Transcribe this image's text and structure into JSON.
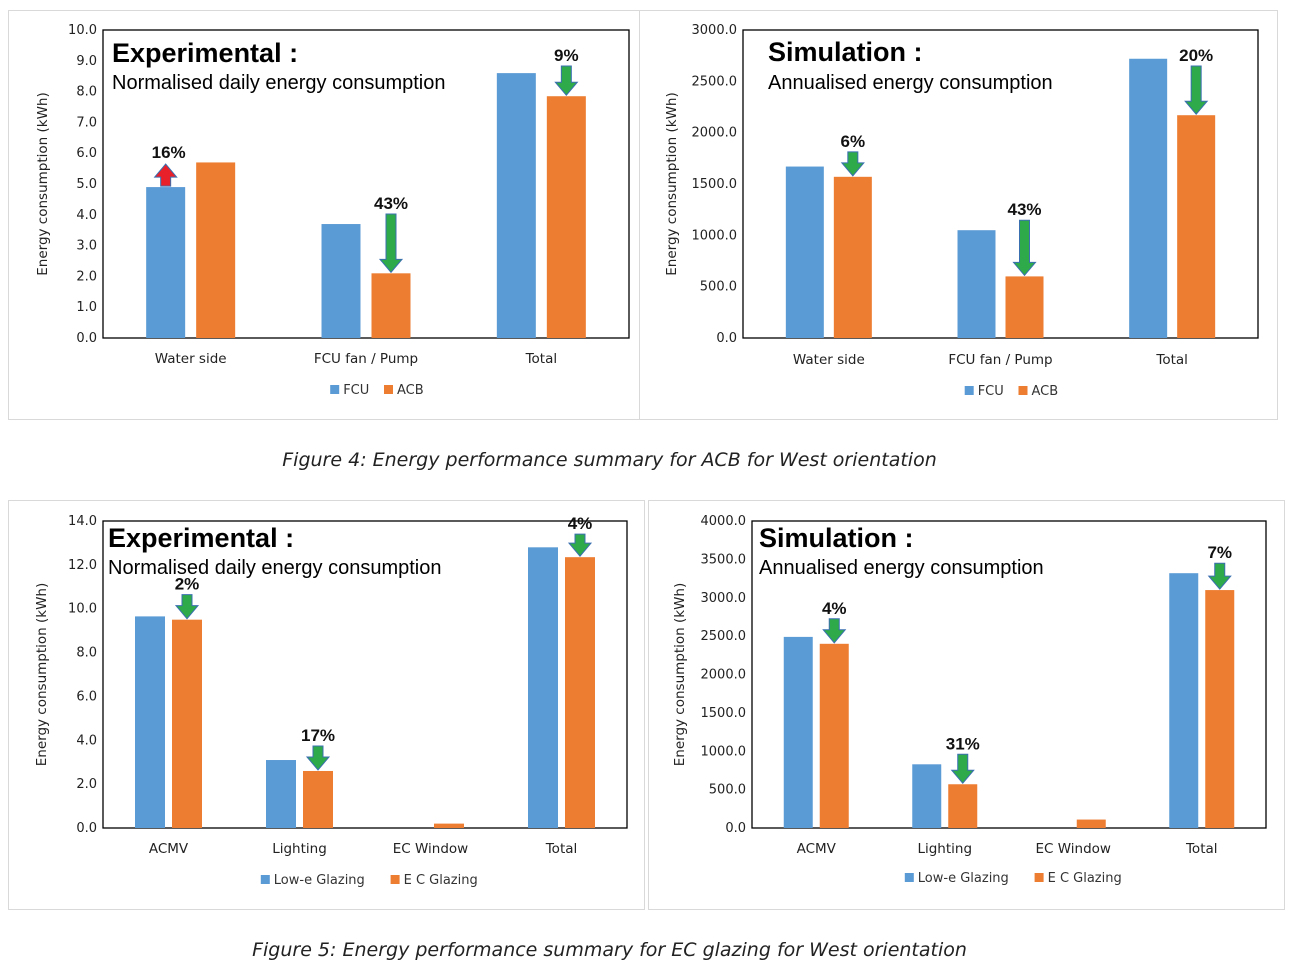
{
  "colors": {
    "series1": "#5b9bd5",
    "series2": "#ed7d31",
    "arrow_down": "#2eaa4a",
    "arrow_up": "#e8202a"
  },
  "captions": {
    "figure4": "Figure 4: Energy performance summary for ACB for West orientation",
    "figure5": "Figure 5: Energy performance summary for EC glazing for West orientation"
  },
  "chart_data": [
    {
      "type": "bar",
      "title": "Experimental :",
      "subtitle": "Normalised daily energy consumption",
      "ylabel": "Energy consumption (kWh)",
      "xlabel": "",
      "ylim": [
        0,
        10
      ],
      "yticks": [
        "0.0",
        "1.0",
        "2.0",
        "3.0",
        "4.0",
        "5.0",
        "6.0",
        "7.0",
        "8.0",
        "9.0",
        "10.0"
      ],
      "categories": [
        "Water side",
        "FCU fan / Pump",
        "Total"
      ],
      "series": [
        {
          "name": "FCU",
          "values": [
            4.9,
            3.7,
            8.6
          ]
        },
        {
          "name": "ACB",
          "values": [
            5.7,
            2.1,
            7.85
          ]
        }
      ],
      "annotations": [
        {
          "text": "16%",
          "direction": "up"
        },
        {
          "text": "43%",
          "direction": "down"
        },
        {
          "text": "9%",
          "direction": "down"
        }
      ],
      "legend": "bottom",
      "grid": false
    },
    {
      "type": "bar",
      "title": "Simulation :",
      "subtitle": "Annualised energy consumption",
      "ylabel": "Energy consumption (kWh)",
      "xlabel": "",
      "ylim": [
        0,
        3000
      ],
      "yticks": [
        "0.0",
        "500.0",
        "1000.0",
        "1500.0",
        "2000.0",
        "2500.0",
        "3000.0"
      ],
      "categories": [
        "Water side",
        "FCU fan / Pump",
        "Total"
      ],
      "series": [
        {
          "name": "FCU",
          "values": [
            1670,
            1050,
            2720
          ]
        },
        {
          "name": "ACB",
          "values": [
            1570,
            600,
            2170
          ]
        }
      ],
      "annotations": [
        {
          "text": "6%",
          "direction": "down"
        },
        {
          "text": "43%",
          "direction": "down"
        },
        {
          "text": "20%",
          "direction": "down"
        }
      ],
      "legend": "bottom",
      "grid": false
    },
    {
      "type": "bar",
      "title": "Experimental :",
      "subtitle": "Normalised daily energy consumption",
      "ylabel": "Energy consumption (kWh)",
      "xlabel": "",
      "ylim": [
        0,
        14
      ],
      "yticks": [
        "0.0",
        "2.0",
        "4.0",
        "6.0",
        "8.0",
        "10.0",
        "12.0",
        "14.0"
      ],
      "categories": [
        "ACMV",
        "Lighting",
        "EC Window",
        "Total"
      ],
      "series": [
        {
          "name": "Low-e Glazing",
          "values": [
            9.65,
            3.1,
            0,
            12.8
          ]
        },
        {
          "name": "E C Glazing",
          "values": [
            9.5,
            2.6,
            0.2,
            12.35
          ]
        }
      ],
      "annotations": [
        {
          "text": "2%",
          "direction": "down"
        },
        {
          "text": "17%",
          "direction": "down"
        },
        null,
        {
          "text": "4%",
          "direction": "down"
        }
      ],
      "legend": "bottom",
      "grid": false
    },
    {
      "type": "bar",
      "title": "Simulation :",
      "subtitle": "Annualised energy consumption",
      "ylabel": "Energy consumption (kWh)",
      "xlabel": "",
      "ylim": [
        0,
        4000
      ],
      "yticks": [
        "0.0",
        "500.0",
        "1000.0",
        "1500.0",
        "2000.0",
        "2500.0",
        "3000.0",
        "3500.0",
        "4000.0"
      ],
      "categories": [
        "ACMV",
        "Lighting",
        "EC Window",
        "Total"
      ],
      "series": [
        {
          "name": "Low-e Glazing",
          "values": [
            2490,
            830,
            0,
            3320
          ]
        },
        {
          "name": "E C Glazing",
          "values": [
            2400,
            570,
            110,
            3100
          ]
        }
      ],
      "annotations": [
        {
          "text": "4%",
          "direction": "down"
        },
        {
          "text": "31%",
          "direction": "down"
        },
        null,
        {
          "text": "7%",
          "direction": "down"
        }
      ],
      "legend": "bottom",
      "grid": false
    }
  ]
}
